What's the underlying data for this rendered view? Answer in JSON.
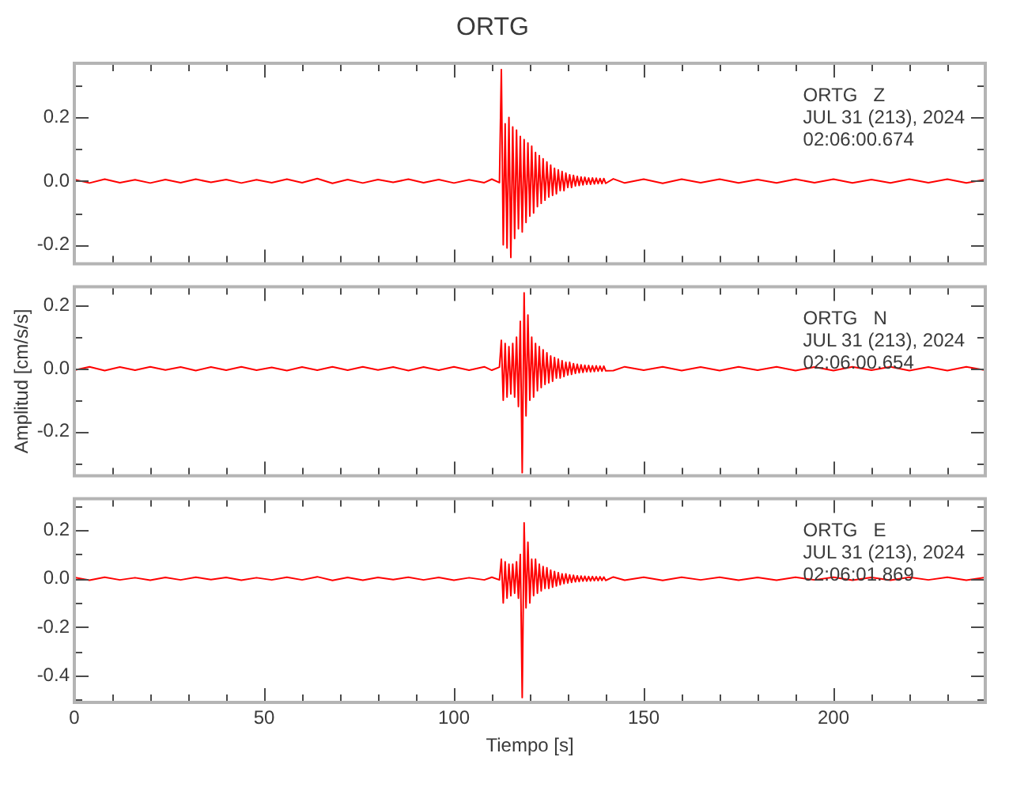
{
  "chart_data": [
    {
      "type": "line",
      "title": "ORTG",
      "annotations": [
        "ORTG   Z",
        "JUL 31 (213), 2024",
        "02:06:00.674"
      ],
      "tick_labels": "y",
      "x": [
        0,
        4,
        8,
        12,
        16,
        20,
        24,
        28,
        32,
        36,
        40,
        44,
        48,
        52,
        56,
        60,
        64,
        68,
        72,
        76,
        80,
        84,
        88,
        92,
        96,
        100,
        104,
        108,
        110,
        112,
        112.5,
        113,
        113.5,
        114,
        114.5,
        115,
        115.5,
        116,
        116.5,
        117,
        117.5,
        118,
        118.5,
        119,
        119.5,
        120,
        120.5,
        121,
        121.5,
        122,
        122.5,
        123,
        123.5,
        124,
        124.5,
        125,
        125.5,
        126,
        126.5,
        127,
        127.5,
        128,
        128.5,
        129,
        129.5,
        130,
        130.5,
        131,
        131.5,
        132,
        132.5,
        133,
        133.5,
        134,
        134.5,
        135,
        135.5,
        136,
        136.5,
        137,
        137.5,
        138,
        138.5,
        139,
        139.5,
        140,
        142,
        145,
        150,
        155,
        160,
        165,
        170,
        175,
        180,
        185,
        190,
        195,
        200,
        205,
        210,
        215,
        220,
        225,
        230,
        235,
        240
      ],
      "series": [
        {
          "color": "#ff0000",
          "values": [
            0.005,
            -0.006,
            0.006,
            -0.005,
            0.004,
            -0.006,
            0.005,
            -0.005,
            0.006,
            -0.004,
            0.005,
            -0.006,
            0.004,
            -0.005,
            0.006,
            -0.005,
            0.008,
            -0.007,
            0.005,
            -0.006,
            0.005,
            -0.004,
            0.006,
            -0.005,
            0.005,
            -0.006,
            0.004,
            -0.005,
            0.006,
            -0.005,
            0.35,
            -0.2,
            0.18,
            -0.21,
            0.2,
            -0.24,
            0.17,
            -0.18,
            0.16,
            -0.15,
            0.14,
            -0.16,
            0.13,
            -0.13,
            0.12,
            -0.11,
            0.11,
            -0.1,
            0.09,
            -0.08,
            0.08,
            -0.07,
            0.07,
            -0.06,
            0.06,
            -0.05,
            0.05,
            -0.045,
            0.04,
            -0.04,
            0.035,
            -0.03,
            0.03,
            -0.03,
            0.025,
            -0.02,
            0.02,
            -0.02,
            0.018,
            -0.015,
            0.015,
            -0.014,
            0.013,
            -0.012,
            0.012,
            -0.01,
            0.01,
            -0.01,
            0.01,
            -0.009,
            0.009,
            -0.008,
            0.008,
            -0.008,
            0.008,
            -0.007,
            0.007,
            -0.006,
            0.006,
            -0.007,
            0.006,
            -0.005,
            0.006,
            -0.006,
            0.005,
            -0.006,
            0.006,
            -0.005,
            0.006,
            -0.006,
            0.005,
            -0.006,
            0.006,
            -0.005,
            0.006,
            -0.006,
            0.005
          ]
        }
      ],
      "xlim": [
        0,
        240
      ],
      "xticks": [
        0,
        {
          "value": 10,
          "label": null
        },
        {
          "value": 20,
          "label": null
        },
        {
          "value": 30,
          "label": null
        },
        {
          "value": 40,
          "label": null
        },
        50,
        {
          "value": 60,
          "label": null
        },
        {
          "value": 70,
          "label": null
        },
        {
          "value": 80,
          "label": null
        },
        {
          "value": 90,
          "label": null
        },
        100,
        {
          "value": 110,
          "label": null
        },
        {
          "value": 120,
          "label": null
        },
        {
          "value": 130,
          "label": null
        },
        {
          "value": 140,
          "label": null
        },
        150,
        {
          "value": 160,
          "label": null
        },
        {
          "value": 170,
          "label": null
        },
        {
          "value": 180,
          "label": null
        },
        {
          "value": 190,
          "label": null
        },
        200,
        {
          "value": 210,
          "label": null
        },
        {
          "value": 220,
          "label": null
        },
        {
          "value": 230,
          "label": null
        },
        {
          "value": 240,
          "label": null
        }
      ],
      "ylim": [
        -0.26,
        0.37
      ],
      "yticks": [
        -0.2,
        {
          "value": -0.1,
          "label": null
        },
        {
          "value": 0,
          "label": "0.0"
        },
        {
          "value": 0.1,
          "label": null
        },
        0.2,
        {
          "value": 0.3,
          "label": null
        }
      ]
    },
    {
      "type": "line",
      "ylabel": "Amplitud [cm/s/s]",
      "annotations": [
        "ORTG   N",
        "JUL 31 (213), 2024",
        "02:06:00.654"
      ],
      "tick_labels": "y",
      "x": [
        0,
        4,
        8,
        12,
        16,
        20,
        24,
        28,
        32,
        36,
        40,
        44,
        48,
        52,
        56,
        60,
        64,
        68,
        72,
        76,
        80,
        84,
        88,
        92,
        96,
        100,
        104,
        108,
        110,
        112,
        112.5,
        113,
        113.5,
        114,
        114.5,
        115,
        115.5,
        116,
        116.5,
        117,
        117.5,
        118,
        118.5,
        119,
        119.5,
        120,
        120.5,
        121,
        121.5,
        122,
        122.5,
        123,
        123.5,
        124,
        124.5,
        125,
        125.5,
        126,
        126.5,
        127,
        127.5,
        128,
        128.5,
        129,
        129.5,
        130,
        130.5,
        131,
        131.5,
        132,
        132.5,
        133,
        133.5,
        134,
        134.5,
        135,
        135.5,
        136,
        136.5,
        137,
        137.5,
        138,
        138.5,
        139,
        139.5,
        140,
        142,
        145,
        150,
        155,
        160,
        165,
        170,
        175,
        180,
        185,
        190,
        195,
        200,
        205,
        210,
        215,
        220,
        225,
        230,
        235,
        240
      ],
      "series": [
        {
          "color": "#ff0000",
          "values": [
            -0.005,
            0.006,
            -0.006,
            0.005,
            -0.005,
            0.006,
            -0.004,
            0.005,
            -0.006,
            0.005,
            -0.005,
            0.006,
            -0.005,
            0.004,
            -0.006,
            0.005,
            -0.005,
            0.006,
            -0.005,
            0.006,
            -0.004,
            0.005,
            -0.006,
            0.005,
            -0.005,
            0.006,
            -0.005,
            0.006,
            -0.005,
            0.005,
            0.09,
            -0.1,
            0.08,
            -0.09,
            0.07,
            -0.08,
            0.08,
            -0.09,
            0.1,
            -0.12,
            0.15,
            -0.33,
            0.24,
            -0.15,
            0.17,
            -0.1,
            0.1,
            -0.09,
            0.08,
            -0.07,
            0.07,
            -0.06,
            0.06,
            -0.05,
            0.05,
            -0.045,
            0.04,
            -0.04,
            0.035,
            -0.03,
            0.03,
            -0.03,
            0.025,
            -0.025,
            0.02,
            -0.02,
            0.02,
            -0.018,
            0.016,
            -0.015,
            0.014,
            -0.013,
            0.012,
            -0.012,
            0.011,
            -0.01,
            0.01,
            -0.01,
            0.009,
            -0.009,
            0.009,
            -0.008,
            0.008,
            -0.008,
            0.008,
            -0.007,
            -0.006,
            0.006,
            -0.005,
            0.006,
            -0.006,
            0.005,
            -0.006,
            0.006,
            -0.005,
            0.006,
            -0.006,
            0.005,
            -0.006,
            0.006,
            -0.005,
            0.006,
            -0.006,
            0.005,
            -0.006,
            0.006,
            -0.005
          ]
        }
      ],
      "xlim": [
        0,
        240
      ],
      "xticks": [
        0,
        {
          "value": 10,
          "label": null
        },
        {
          "value": 20,
          "label": null
        },
        {
          "value": 30,
          "label": null
        },
        {
          "value": 40,
          "label": null
        },
        50,
        {
          "value": 60,
          "label": null
        },
        {
          "value": 70,
          "label": null
        },
        {
          "value": 80,
          "label": null
        },
        {
          "value": 90,
          "label": null
        },
        100,
        {
          "value": 110,
          "label": null
        },
        {
          "value": 120,
          "label": null
        },
        {
          "value": 130,
          "label": null
        },
        {
          "value": 140,
          "label": null
        },
        150,
        {
          "value": 160,
          "label": null
        },
        {
          "value": 170,
          "label": null
        },
        {
          "value": 180,
          "label": null
        },
        {
          "value": 190,
          "label": null
        },
        200,
        {
          "value": 210,
          "label": null
        },
        {
          "value": 220,
          "label": null
        },
        {
          "value": 230,
          "label": null
        },
        {
          "value": 240,
          "label": null
        }
      ],
      "ylim": [
        -0.34,
        0.26
      ],
      "yticks": [
        {
          "value": -0.3,
          "label": null
        },
        -0.2,
        {
          "value": -0.1,
          "label": null
        },
        {
          "value": 0,
          "label": "0.0"
        },
        {
          "value": 0.1,
          "label": null
        },
        0.2
      ]
    },
    {
      "type": "line",
      "xlabel": "Tiempo [s]",
      "annotations": [
        "ORTG   E",
        "JUL 31 (213), 2024",
        "02:06:01.869"
      ],
      "x": [
        0,
        4,
        8,
        12,
        16,
        20,
        24,
        28,
        32,
        36,
        40,
        44,
        48,
        52,
        56,
        60,
        64,
        68,
        72,
        76,
        80,
        84,
        88,
        92,
        96,
        100,
        104,
        108,
        110,
        112,
        112.5,
        113,
        113.5,
        114,
        114.5,
        115,
        115.5,
        116,
        116.5,
        117,
        117.5,
        118,
        118.5,
        119,
        119.5,
        120,
        120.5,
        121,
        121.5,
        122,
        122.5,
        123,
        123.5,
        124,
        124.5,
        125,
        125.5,
        126,
        126.5,
        127,
        127.5,
        128,
        128.5,
        129,
        129.5,
        130,
        130.5,
        131,
        131.5,
        132,
        132.5,
        133,
        133.5,
        134,
        134.5,
        135,
        135.5,
        136,
        136.5,
        137,
        137.5,
        138,
        138.5,
        139,
        139.5,
        140,
        142,
        145,
        150,
        155,
        160,
        165,
        170,
        175,
        180,
        185,
        190,
        195,
        200,
        205,
        210,
        215,
        220,
        225,
        230,
        235,
        240
      ],
      "series": [
        {
          "color": "#ff0000",
          "values": [
            0.005,
            -0.006,
            0.006,
            -0.005,
            0.004,
            -0.006,
            0.005,
            -0.005,
            0.006,
            -0.004,
            0.005,
            -0.006,
            0.004,
            -0.005,
            0.006,
            -0.005,
            0.008,
            -0.007,
            0.005,
            -0.006,
            0.005,
            -0.004,
            0.006,
            -0.005,
            0.005,
            -0.006,
            0.004,
            -0.005,
            0.006,
            -0.005,
            0.08,
            -0.1,
            0.07,
            -0.08,
            0.06,
            -0.07,
            0.06,
            -0.06,
            0.07,
            -0.08,
            0.1,
            -0.49,
            0.23,
            -0.12,
            0.15,
            -0.1,
            0.08,
            -0.07,
            0.08,
            -0.06,
            0.06,
            -0.05,
            0.05,
            -0.04,
            0.045,
            -0.04,
            0.035,
            -0.035,
            0.03,
            -0.03,
            0.025,
            -0.025,
            0.02,
            -0.02,
            0.02,
            -0.018,
            0.016,
            -0.015,
            0.014,
            -0.013,
            0.012,
            -0.012,
            0.011,
            -0.01,
            0.01,
            -0.01,
            0.009,
            -0.009,
            0.009,
            -0.008,
            0.008,
            -0.008,
            0.008,
            -0.007,
            0.007,
            -0.007,
            0.007,
            -0.006,
            0.006,
            -0.007,
            0.006,
            -0.005,
            0.006,
            -0.006,
            0.005,
            -0.006,
            0.006,
            -0.005,
            0.006,
            -0.006,
            0.005,
            -0.006,
            0.006,
            -0.005,
            0.006,
            -0.006,
            0.005
          ]
        }
      ],
      "xlim": [
        0,
        240
      ],
      "xticks": [
        0,
        {
          "value": 10,
          "label": null
        },
        {
          "value": 20,
          "label": null
        },
        {
          "value": 30,
          "label": null
        },
        {
          "value": 40,
          "label": null
        },
        50,
        {
          "value": 60,
          "label": null
        },
        {
          "value": 70,
          "label": null
        },
        {
          "value": 80,
          "label": null
        },
        {
          "value": 90,
          "label": null
        },
        100,
        {
          "value": 110,
          "label": null
        },
        {
          "value": 120,
          "label": null
        },
        {
          "value": 130,
          "label": null
        },
        {
          "value": 140,
          "label": null
        },
        150,
        {
          "value": 160,
          "label": null
        },
        {
          "value": 170,
          "label": null
        },
        {
          "value": 180,
          "label": null
        },
        {
          "value": 190,
          "label": null
        },
        200,
        {
          "value": 210,
          "label": null
        },
        {
          "value": 220,
          "label": null
        },
        {
          "value": 230,
          "label": null
        },
        {
          "value": 240,
          "label": null
        }
      ],
      "ylim": [
        -0.51,
        0.33
      ],
      "yticks": [
        {
          "value": -0.5,
          "label": null
        },
        -0.4,
        {
          "value": -0.3,
          "label": null
        },
        -0.2,
        {
          "value": -0.1,
          "label": null
        },
        {
          "value": 0,
          "label": "0.0"
        },
        {
          "value": 0.1,
          "label": null
        },
        0.2,
        {
          "value": 0.3,
          "label": null
        }
      ]
    }
  ]
}
